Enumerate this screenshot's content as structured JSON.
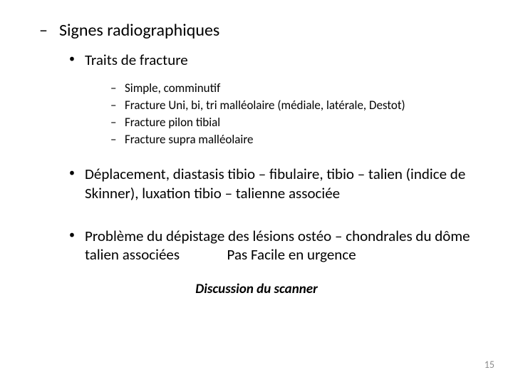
{
  "heading": "Signes radiographiques",
  "traits_label": "Traits de fracture",
  "traits": [
    "Simple, comminutif",
    "Fracture Uni, bi, tri malléolaire (médiale, latérale, Destot)",
    "Fracture pilon tibial",
    "Fracture supra malléolaire"
  ],
  "bullet2": "Déplacement, diastasis tibio – fibulaire, tibio – talien (indice de Skinner), luxation tibio – talienne associée",
  "bullet3_a": "Problème du dépistage des lésions ostéo – chondrales du dôme talien associées",
  "bullet3_b": "Pas Facile en urgence",
  "footer": "Discussion du scanner",
  "page": "15",
  "bullets": {
    "dash": "–",
    "dot": "•"
  }
}
